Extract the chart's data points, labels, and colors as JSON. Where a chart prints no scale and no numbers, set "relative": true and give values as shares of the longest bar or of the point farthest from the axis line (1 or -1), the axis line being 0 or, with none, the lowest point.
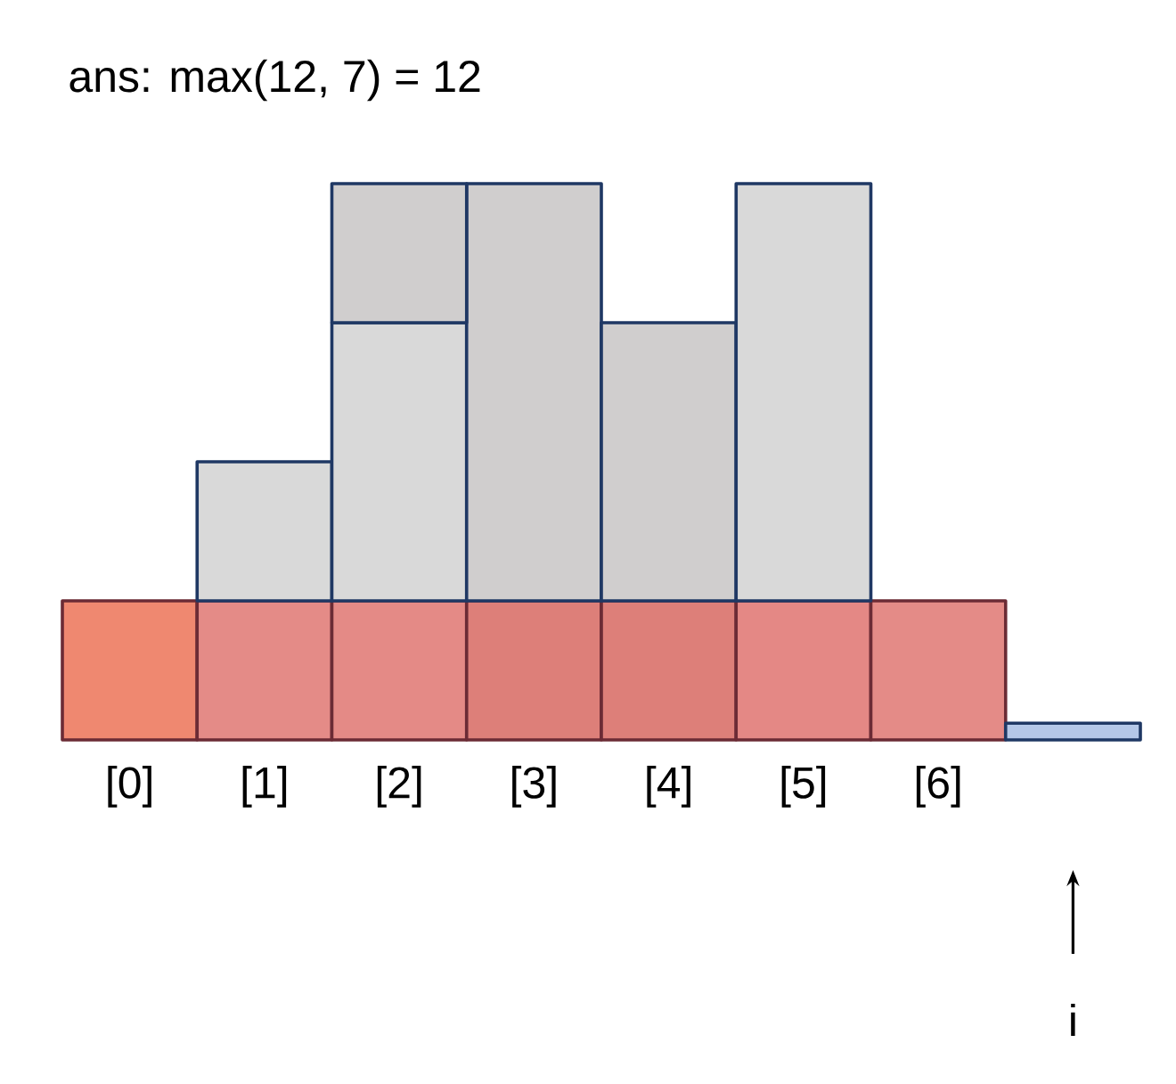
{
  "chart_data": {
    "type": "bar",
    "title": "ans: max(12, 7) = 12",
    "stacked": true,
    "relative": true,
    "categories": [
      "[0]",
      "[1]",
      "[2]",
      "[3]",
      "[4]",
      "[5]",
      "[6]",
      null
    ],
    "series": [
      {
        "values": [
          0.25,
          0.25,
          0.25,
          0.25,
          0.25,
          0.25,
          0.25,
          null
        ],
        "colors": [
          "#ef8870",
          "#e48b87",
          "#e48a86",
          "#dd7f79",
          "#dd7f79",
          "#e48885",
          "#e48b87",
          null
        ]
      },
      {
        "values": [
          null,
          0.25,
          0.5,
          0.75,
          0.5,
          0.75,
          null,
          null
        ],
        "colors": [
          null,
          "#d9d9d9",
          "#d9d9d9",
          "#d0cece",
          "#d0cece",
          "#d9d9d9",
          null,
          null
        ]
      },
      {
        "values": [
          null,
          null,
          0.25,
          null,
          null,
          null,
          null,
          null
        ],
        "colors": [
          null,
          null,
          "#d0cece",
          null,
          null,
          null,
          null,
          null
        ]
      },
      {
        "values": [
          null,
          null,
          null,
          null,
          null,
          null,
          null,
          0.03
        ],
        "colors": [
          null,
          null,
          null,
          null,
          null,
          null,
          null,
          "#b4c7e7"
        ]
      }
    ],
    "annotations": [
      "i"
    ]
  }
}
